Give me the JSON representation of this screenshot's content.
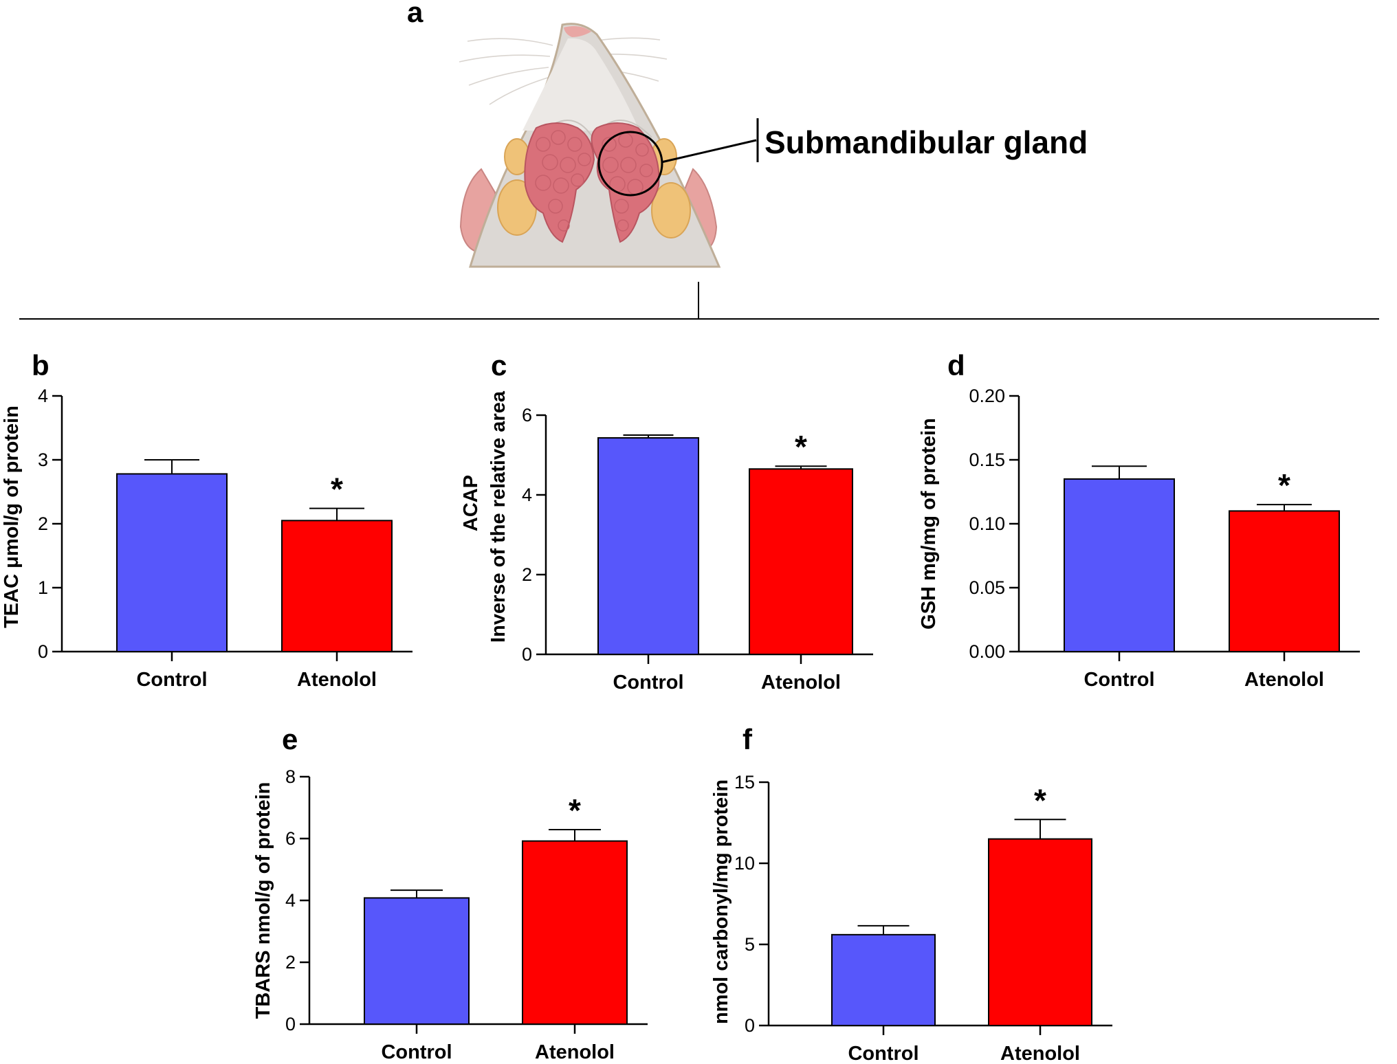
{
  "panel_a": {
    "label": "a",
    "annotation": "Submandibular gland",
    "image_subject": "rat-ventral-head-illustration"
  },
  "colors": {
    "control": "#5757fb",
    "atenolol": "#ff0000",
    "axis": "#000000"
  },
  "chart_data": [
    {
      "panel": "b",
      "type": "bar",
      "categories": [
        "Control",
        "Atenolol"
      ],
      "values": [
        2.78,
        2.05
      ],
      "errors": [
        0.22,
        0.19
      ],
      "significance": [
        "",
        "*"
      ],
      "ylabel": "TEAC μmol/g of protein",
      "ylim": [
        0,
        4
      ],
      "yticks": [
        "0",
        "1",
        "2",
        "3",
        "4"
      ]
    },
    {
      "panel": "c",
      "type": "bar",
      "categories": [
        "Control",
        "Atenolol"
      ],
      "values": [
        5.43,
        4.65
      ],
      "errors": [
        0.07,
        0.07
      ],
      "significance": [
        "",
        "*"
      ],
      "ylabel_lines": [
        "ACAP",
        "Inverse of the relative area"
      ],
      "ylim": [
        0,
        6
      ],
      "yticks": [
        "0",
        "2",
        "4",
        "6"
      ]
    },
    {
      "panel": "d",
      "type": "bar",
      "categories": [
        "Control",
        "Atenolol"
      ],
      "values": [
        0.135,
        0.11
      ],
      "errors": [
        0.01,
        0.005
      ],
      "significance": [
        "",
        "*"
      ],
      "ylabel": "GSH mg/mg of protein",
      "ylim": [
        0,
        0.2
      ],
      "yticks": [
        "0.00",
        "0.05",
        "0.10",
        "0.15",
        "0.20"
      ]
    },
    {
      "panel": "e",
      "type": "bar",
      "categories": [
        "Control",
        "Atenolol"
      ],
      "values": [
        4.08,
        5.92
      ],
      "errors": [
        0.25,
        0.37
      ],
      "significance": [
        "",
        "*"
      ],
      "ylabel": "TBARS nmol/g of protein",
      "ylim": [
        0,
        8
      ],
      "yticks": [
        "0",
        "2",
        "4",
        "6",
        "8"
      ]
    },
    {
      "panel": "f",
      "type": "bar",
      "categories": [
        "Control",
        "Atenolol"
      ],
      "values": [
        5.6,
        11.5
      ],
      "errors": [
        0.55,
        1.2
      ],
      "significance": [
        "",
        "*"
      ],
      "ylabel": "nmol carbonyl/mg protein",
      "ylim": [
        0,
        15
      ],
      "yticks": [
        "0",
        "5",
        "10",
        "15"
      ]
    }
  ]
}
